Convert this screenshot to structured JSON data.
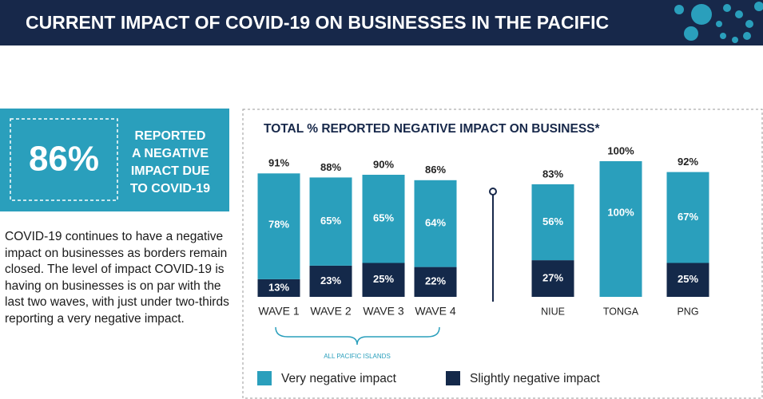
{
  "header": {
    "title": "CURRENT IMPACT OF COVID-19 ON BUSINESSES IN THE PACIFIC"
  },
  "callout": {
    "stat": "86%",
    "lines": [
      "REPORTED",
      "A NEGATIVE",
      "IMPACT DUE",
      "TO COVID-19"
    ]
  },
  "paragraph": "COVID-19 continues to have a negative impact on businesses as borders remain closed. The level of impact COVID-19 is having on businesses is on par with the last two waves, with just under two-thirds reporting a very negative impact.",
  "chart_data": {
    "type": "stacked_bar",
    "title": "TOTAL % REPORTED NEGATIVE IMPACT ON BUSINESS*",
    "categories": [
      "WAVE 1",
      "WAVE 2",
      "WAVE 3",
      "WAVE 4",
      "NIUE",
      "TONGA",
      "PNG"
    ],
    "series": [
      {
        "name": "Slightly negative impact",
        "color": "#14294a",
        "values": [
          13,
          23,
          25,
          22,
          27,
          null,
          25
        ],
        "value_labels": [
          "13%",
          "23%",
          "25%",
          "22%",
          "27%",
          null,
          "25%"
        ]
      },
      {
        "name": "Very negative impact",
        "color": "#2a9fbc",
        "values": [
          78,
          65,
          65,
          64,
          56,
          100,
          67
        ],
        "value_labels": [
          "78%",
          "65%",
          "65%",
          "64%",
          "56%",
          "100%",
          "67%"
        ]
      }
    ],
    "totals": {
      "values": [
        91,
        88,
        90,
        86,
        83,
        100,
        92
      ],
      "value_labels": [
        "91%",
        "88%",
        "90%",
        "86%",
        "83%",
        "100%",
        "92%"
      ]
    },
    "annotation": "ALL PACIFIC ISLANDS"
  }
}
